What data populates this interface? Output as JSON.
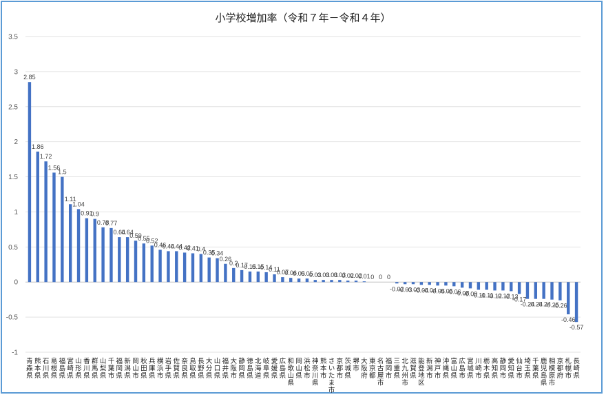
{
  "chart_data": {
    "type": "bar",
    "title": "小学校増加率（令和７年－令和４年）",
    "xlabel": "",
    "ylabel": "",
    "ylim": [
      -1,
      3.5
    ],
    "yticks": [
      "-1",
      "-0.5",
      "0",
      "0.5",
      "1",
      "1.5",
      "2",
      "2.5",
      "3",
      "3.5"
    ],
    "grid": true,
    "bar_color": "#4472c4",
    "categories": [
      "青森県",
      "熊本県",
      "石川県",
      "島根県",
      "福島県",
      "宮崎県",
      "山形県",
      "香川県",
      "群馬県",
      "山梨県",
      "千葉市",
      "福岡県",
      "新潟県",
      "岡山市",
      "秋田県",
      "兵庫県",
      "横浜市",
      "岩手県",
      "佐賀県",
      "奈良県",
      "鳥取県",
      "長野県",
      "大分県",
      "山口県",
      "福井県",
      "大阪市",
      "静岡県",
      "徳島県",
      "北海道",
      "岐阜県",
      "愛媛県",
      "広島県",
      "和歌山県",
      "岡山県",
      "浜松市",
      "神奈川県",
      "熊本市",
      "さいたま市",
      "京都市",
      "茨城県",
      "堺市",
      "大阪府",
      "東京都",
      "名古屋市",
      "福岡市",
      "三重県",
      "北九州市",
      "滋賀県",
      "能登地区",
      "新潟市",
      "神戸市",
      "沖縄県",
      "富山県",
      "広島市",
      "宮城県",
      "川崎市",
      "栃木県",
      "高知県",
      "静岡市",
      "愛知県",
      "仙台市",
      "埼玉県",
      "千葉県",
      "鹿児島県",
      "相模原市",
      "京都府",
      "札幌市",
      "長崎県"
    ],
    "values": [
      2.85,
      1.86,
      1.72,
      1.56,
      1.5,
      1.11,
      1.04,
      0.91,
      0.9,
      0.78,
      0.77,
      0.64,
      0.64,
      0.59,
      0.55,
      0.52,
      0.46,
      0.44,
      0.44,
      0.42,
      0.41,
      0.4,
      0.35,
      0.34,
      0.26,
      0.2,
      0.17,
      0.15,
      0.15,
      0.14,
      0.11,
      0.07,
      0.06,
      0.05,
      0.05,
      0.03,
      0.03,
      0.03,
      0.03,
      0.02,
      0.02,
      0.01,
      0,
      0,
      0,
      -0.02,
      -0.03,
      -0.03,
      -0.04,
      -0.04,
      -0.05,
      -0.05,
      -0.06,
      -0.08,
      -0.09,
      -0.11,
      -0.11,
      -0.12,
      -0.12,
      -0.13,
      -0.17,
      -0.24,
      -0.24,
      -0.24,
      -0.25,
      -0.26,
      -0.46,
      -0.57
    ],
    "labels": [
      "2.85",
      "1.86",
      "1.72",
      "1.56",
      "1.5",
      "1.11",
      "1.04",
      "0.91",
      "0.9",
      "0.78",
      "0.77",
      "0.64",
      "0.64",
      "0.59",
      "0.55",
      "0.52",
      "0.46",
      "0.44",
      "0.44",
      "0.42",
      "0.41",
      "0.4",
      "0.35",
      "0.34",
      "0.26",
      "0.2",
      "0.17",
      "0.15",
      "0.15",
      "0.14",
      "0.11",
      "0.07",
      "0.06",
      "0.05",
      "0.05",
      "0.03",
      "0.03",
      "0.03",
      "0.03",
      "0.02",
      "0.02",
      "0.01",
      "0",
      "0",
      "0",
      "-0.02",
      "-0.03",
      "-0.03",
      "-0.04",
      "-0.04",
      "-0.05",
      "-0.05",
      "-0.06",
      "-0.08",
      "-0.09",
      "-0.11",
      "-0.11",
      "-0.12",
      "-0.12",
      "-0.13",
      "-0.17",
      "-0.24",
      "-0.24",
      "-0.24",
      "-0.25",
      "-0.26",
      "-0.46",
      "-0.57"
    ]
  }
}
